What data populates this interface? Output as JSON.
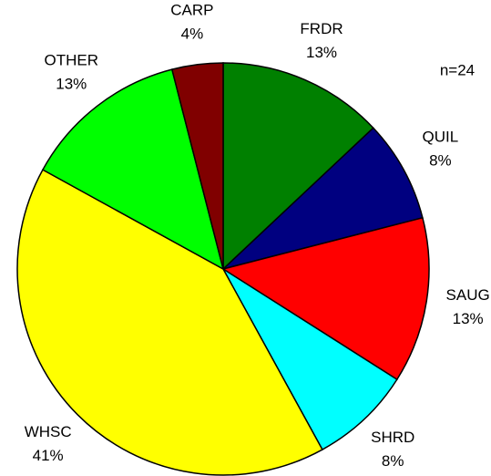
{
  "chart_data": {
    "type": "pie",
    "annotation": "n=24",
    "categories": [
      "FRDR",
      "QUIL",
      "SAUG",
      "SHRD",
      "WHSC",
      "OTHER",
      "CARP"
    ],
    "values": [
      13,
      8,
      13,
      8,
      41,
      13,
      4
    ],
    "value_labels": [
      "13%",
      "8%",
      "13%",
      "8%",
      "41%",
      "13%",
      "4%"
    ],
    "colors": [
      "#008000",
      "#000080",
      "#ff0000",
      "#00ffff",
      "#ffff00",
      "#00ff00",
      "#800000"
    ]
  }
}
